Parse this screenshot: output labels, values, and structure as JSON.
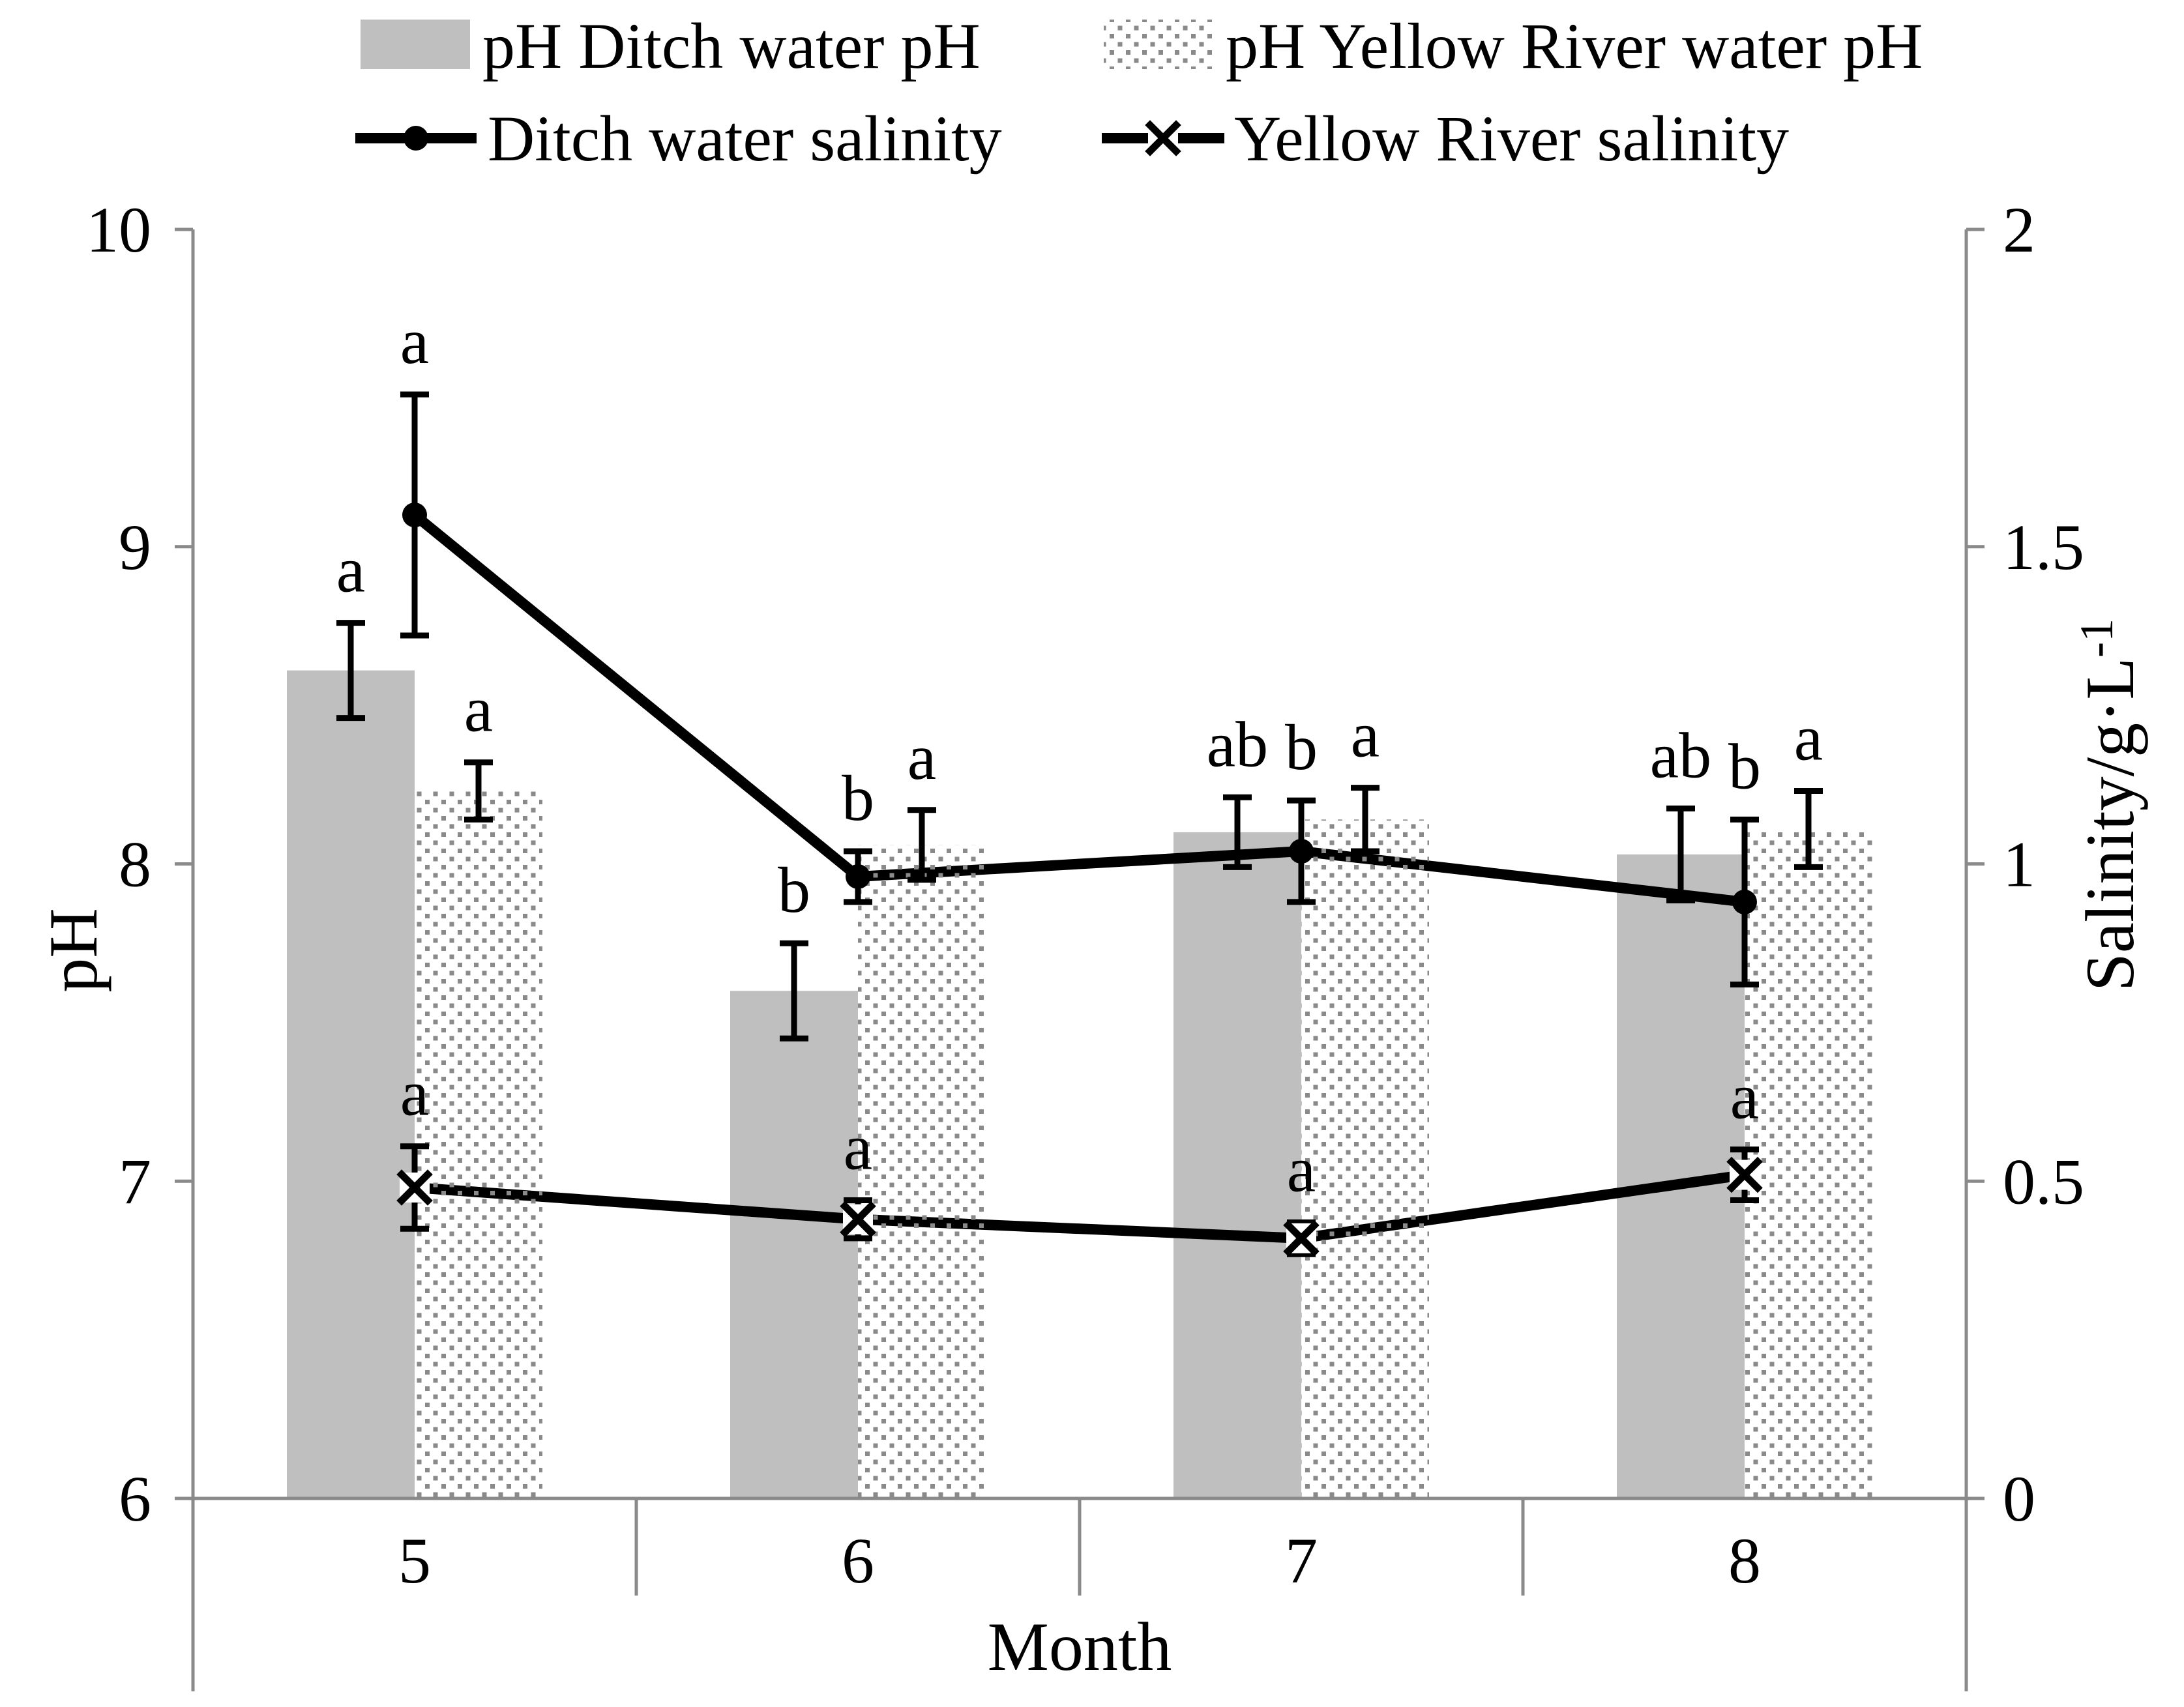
{
  "chart_data": {
    "type": "combo",
    "title": "",
    "categories": [
      "5",
      "6",
      "7",
      "8"
    ],
    "x_axis": {
      "label": "Month"
    },
    "y_axis_left": {
      "label": "pH",
      "range": [
        6,
        10
      ],
      "tick_values": [
        6,
        7,
        8,
        9,
        10
      ],
      "tick_labels": [
        "6",
        "7",
        "8",
        "9",
        "10"
      ]
    },
    "y_axis_right": {
      "label_base": "Salinity/g·L",
      "label_sup": "-1",
      "range": [
        0,
        2
      ],
      "tick_values": [
        0,
        0.5,
        1,
        1.5,
        2
      ],
      "tick_labels": [
        "0",
        "0.5",
        "1",
        "1.5",
        "2"
      ]
    },
    "legend_position": "top",
    "grid": false,
    "series": [
      {
        "name": "pH Ditch water pH",
        "type": "bar",
        "style": "solid-gray",
        "axis": "left",
        "values": [
          8.61,
          7.6,
          8.1,
          8.03
        ],
        "errors": [
          0.15,
          0.15,
          0.11,
          0.145
        ],
        "letters": [
          "a",
          "b",
          "ab",
          "ab"
        ]
      },
      {
        "name": "pH Yellow River water  pH",
        "type": "bar",
        "style": "dotted-pattern",
        "axis": "left",
        "values": [
          8.23,
          8.06,
          8.14,
          8.11
        ],
        "errors": [
          0.09,
          0.11,
          0.1,
          0.12
        ],
        "letters": [
          "a",
          "a",
          "a",
          "a"
        ]
      },
      {
        "name": "Ditch water salinity",
        "type": "line",
        "marker": "circle",
        "axis": "right",
        "values": [
          1.55,
          0.98,
          1.02,
          0.94
        ],
        "errors": [
          0.19,
          0.04,
          0.08,
          0.13
        ],
        "letters": [
          "a",
          "b",
          "b",
          "b"
        ]
      },
      {
        "name": "Yellow River   salinity",
        "type": "line",
        "marker": "x",
        "axis": "right",
        "values": [
          0.49,
          0.44,
          0.41,
          0.51
        ],
        "errors": [
          0.065,
          0.03,
          0.025,
          0.04
        ],
        "letters": [
          "a",
          "a",
          "a",
          "a"
        ]
      }
    ],
    "colors": {
      "bar_gray": "#bfbfbf",
      "pattern_dot": "#8a8a8a",
      "axis_line": "#8a8a8a",
      "series_black": "#000000",
      "background": "#ffffff"
    }
  }
}
